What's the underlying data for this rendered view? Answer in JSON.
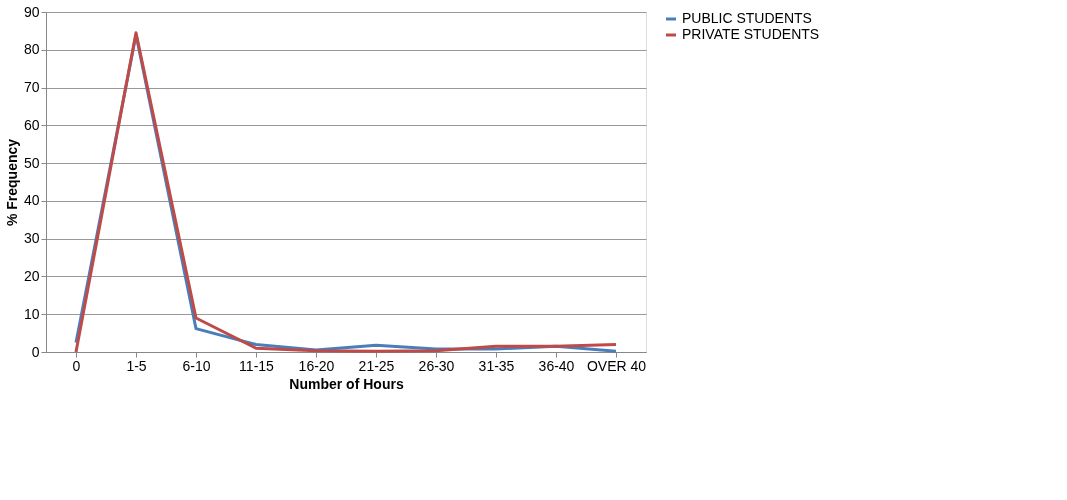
{
  "chart_data": {
    "type": "line",
    "xlabel": "Number of Hours",
    "ylabel": "% Frequency",
    "categories": [
      "0",
      "1-5",
      "6-10",
      "11-15",
      "16-20",
      "21-25",
      "26-30",
      "31-35",
      "36-40",
      "OVER 40"
    ],
    "series": [
      {
        "name": "PUBLIC STUDENTS",
        "color": "#4a7ebb",
        "values": [
          2.5,
          84,
          6.2,
          2,
          0.5,
          1.8,
          0.8,
          0.8,
          1.5,
          0.2
        ]
      },
      {
        "name": "PRIVATE STUDENTS",
        "color": "#be4b48",
        "values": [
          0,
          84.5,
          9,
          1,
          0.3,
          0.2,
          0.3,
          1.5,
          1.5,
          2
        ]
      }
    ],
    "ylim": [
      0,
      90
    ],
    "yticks": [
      0,
      10,
      20,
      30,
      40,
      50,
      60,
      70,
      80,
      90
    ],
    "grid": "y",
    "legend": "right",
    "marker": "none",
    "line_style": "solid"
  }
}
